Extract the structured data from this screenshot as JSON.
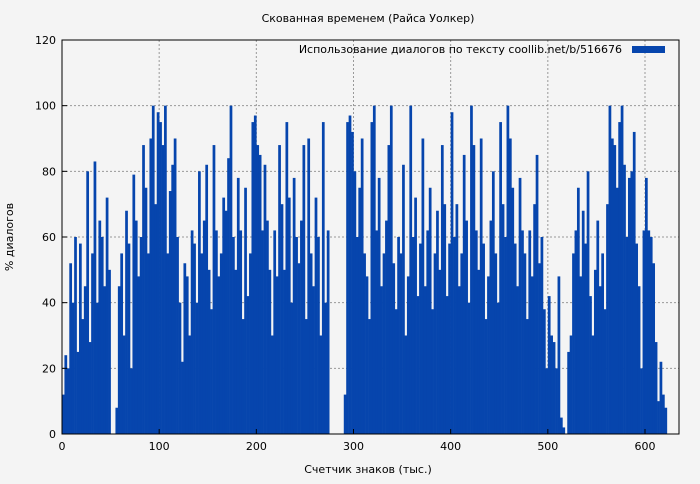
{
  "chart_data": {
    "type": "bar",
    "title": "Скованная временем (Райса Уолкер)",
    "xlabel": "Счетчик знаков (тыс.)",
    "ylabel": "% диалогов",
    "legend": "Использование диалогов по тексту  coollib.net/b/516676",
    "legend_position": "top-right",
    "color": "#0645ad",
    "xlim": [
      0,
      635
    ],
    "ylim": [
      0,
      120
    ],
    "xticks": [
      0,
      100,
      200,
      300,
      400,
      500,
      600
    ],
    "yticks": [
      0,
      20,
      40,
      60,
      80,
      100,
      120
    ],
    "grid": true,
    "x_step": 2.5,
    "values": [
      12,
      24,
      20,
      52,
      40,
      60,
      25,
      58,
      35,
      45,
      80,
      28,
      55,
      83,
      40,
      65,
      60,
      45,
      72,
      50,
      0,
      0,
      8,
      45,
      55,
      30,
      68,
      58,
      20,
      79,
      65,
      48,
      60,
      88,
      75,
      55,
      90,
      100,
      70,
      98,
      95,
      88,
      100,
      55,
      74,
      82,
      90,
      60,
      40,
      22,
      52,
      48,
      30,
      62,
      58,
      40,
      80,
      55,
      65,
      82,
      50,
      38,
      88,
      62,
      48,
      55,
      72,
      68,
      84,
      100,
      60,
      50,
      78,
      62,
      35,
      75,
      42,
      55,
      95,
      97,
      88,
      85,
      62,
      82,
      65,
      50,
      30,
      62,
      48,
      88,
      70,
      50,
      95,
      72,
      40,
      78,
      60,
      52,
      65,
      88,
      35,
      90,
      55,
      45,
      72,
      60,
      30,
      95,
      40,
      62,
      0,
      0,
      0,
      0,
      0,
      0,
      12,
      95,
      97,
      92,
      80,
      60,
      75,
      90,
      55,
      48,
      35,
      95,
      100,
      62,
      78,
      45,
      55,
      65,
      88,
      100,
      52,
      38,
      60,
      55,
      82,
      30,
      48,
      100,
      60,
      72,
      42,
      58,
      90,
      45,
      62,
      75,
      38,
      55,
      68,
      50,
      88,
      70,
      42,
      58,
      98,
      60,
      70,
      45,
      55,
      85,
      65,
      40,
      100,
      88,
      62,
      50,
      90,
      58,
      35,
      48,
      65,
      80,
      55,
      40,
      95,
      70,
      60,
      100,
      90,
      75,
      58,
      45,
      78,
      62,
      55,
      35,
      62,
      48,
      70,
      85,
      52,
      60,
      38,
      20,
      42,
      30,
      28,
      20,
      48,
      5,
      2,
      0,
      25,
      30,
      55,
      62,
      75,
      48,
      68,
      58,
      80,
      42,
      30,
      50,
      65,
      45,
      55,
      38,
      70,
      100,
      90,
      88,
      75,
      95,
      100,
      82,
      60,
      78,
      80,
      92,
      58,
      45,
      20,
      62,
      78,
      62,
      60,
      52,
      28,
      10,
      22,
      12,
      8
    ]
  }
}
